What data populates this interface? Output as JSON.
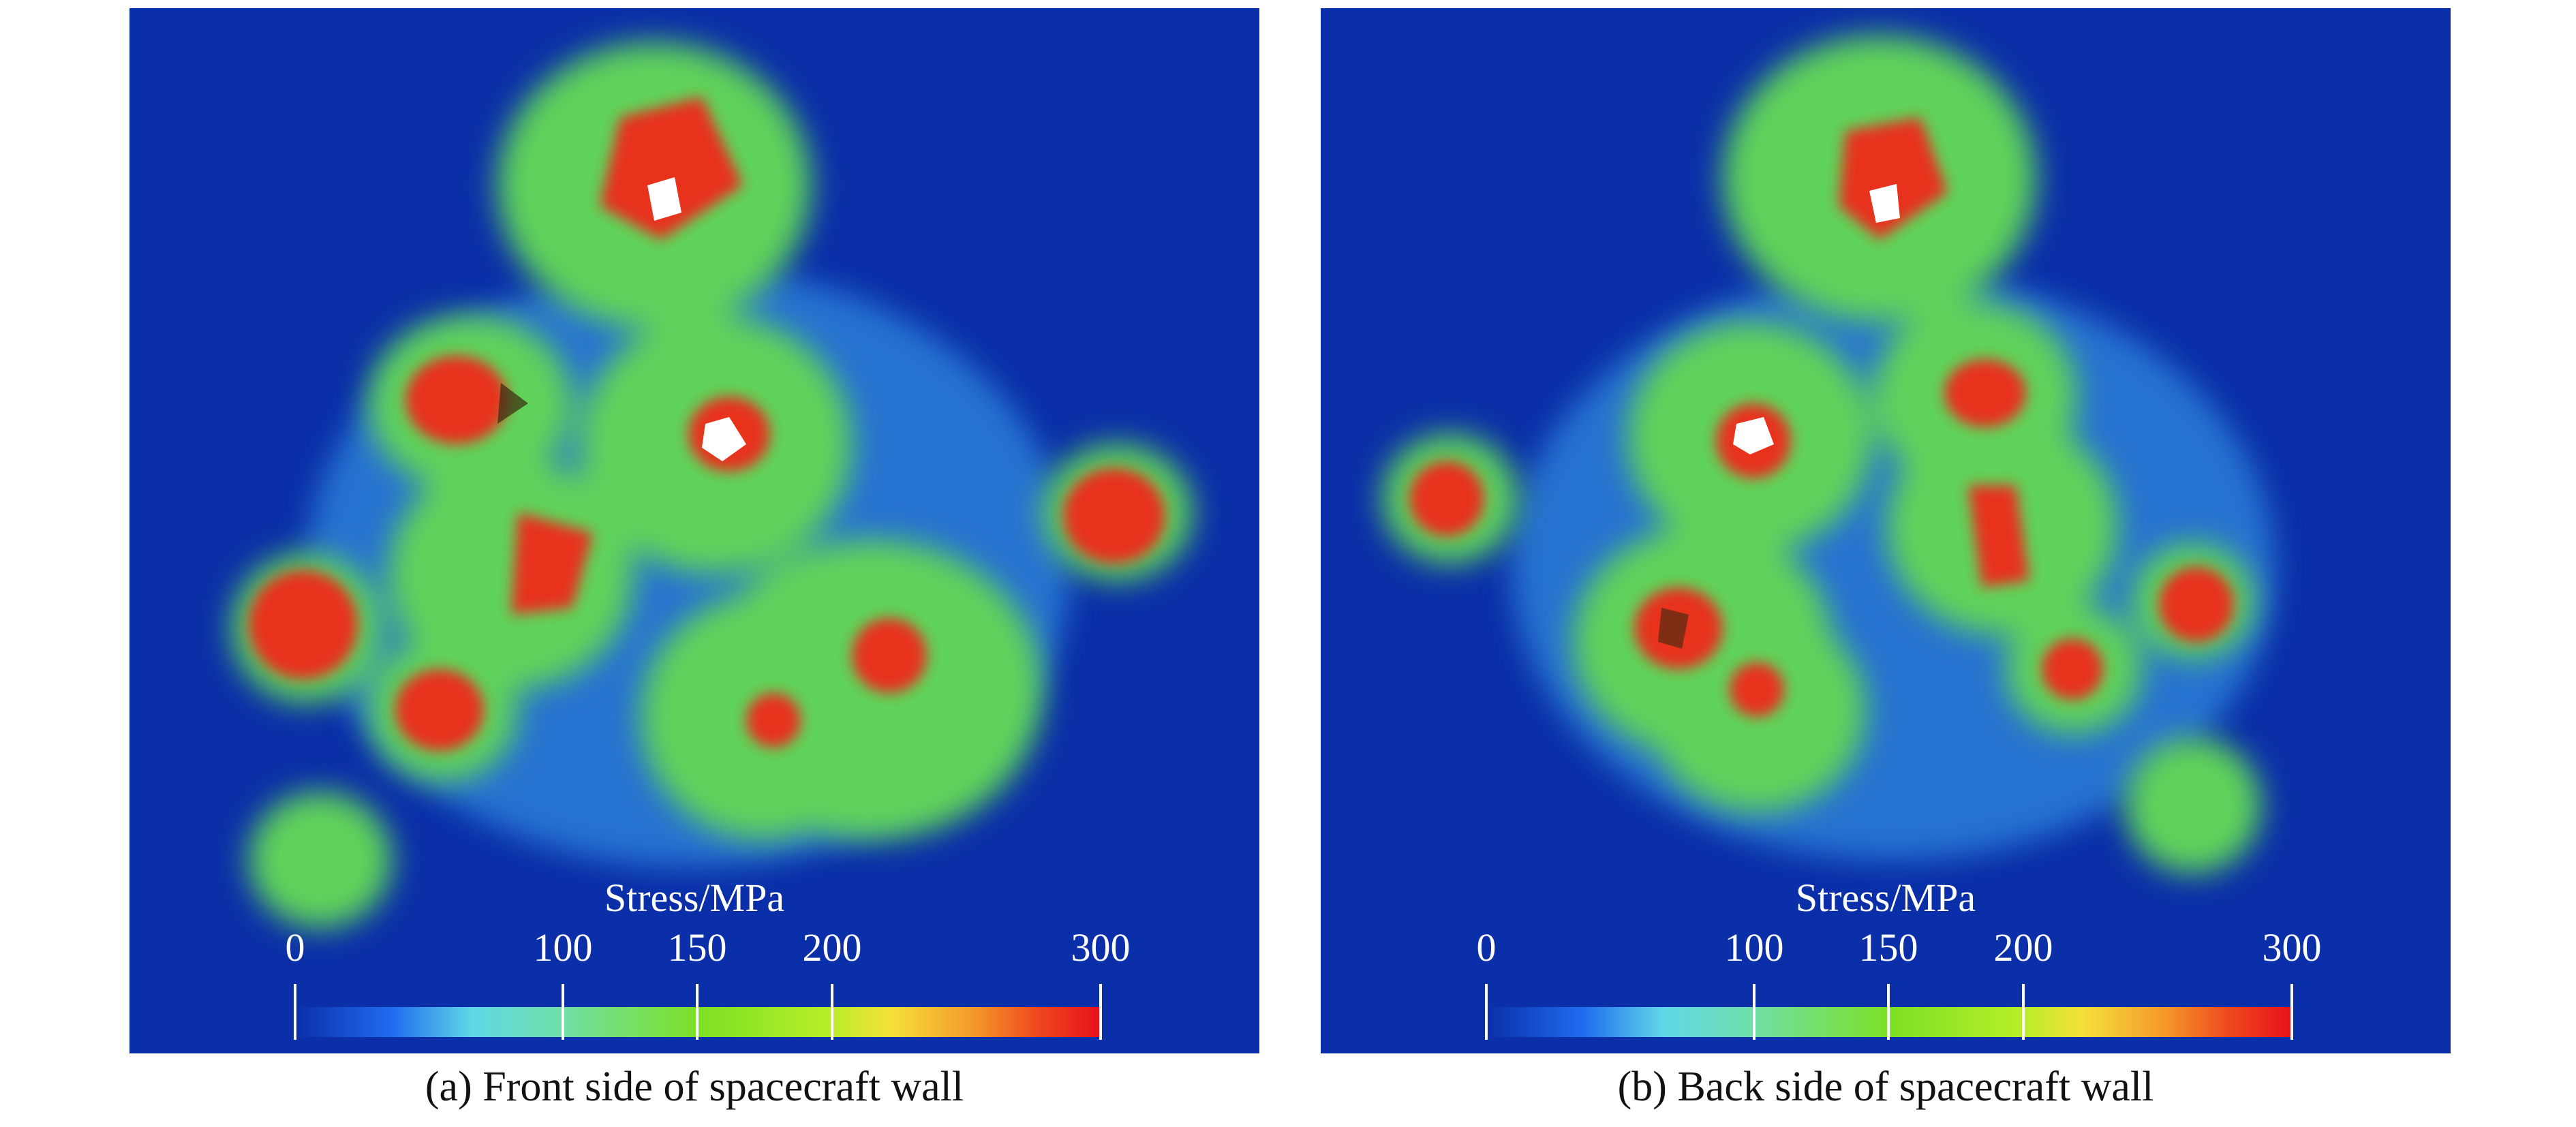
{
  "colors": {
    "background": "#0a2fa8",
    "low": "#0a2fa8",
    "mid": "#7ce025",
    "high": "#e8301a",
    "hole": "#ffffff"
  },
  "panels": [
    {
      "id": "a",
      "legend_title": "Stress/MPa",
      "ticks": [
        "0",
        "100",
        "150",
        "200",
        "300"
      ],
      "caption": "(a) Front side of spacecraft wall"
    },
    {
      "id": "b",
      "legend_title": "Stress/MPa",
      "ticks": [
        "0",
        "100",
        "150",
        "200",
        "300"
      ],
      "caption": "(b) Back side of spacecraft wall"
    }
  ]
}
